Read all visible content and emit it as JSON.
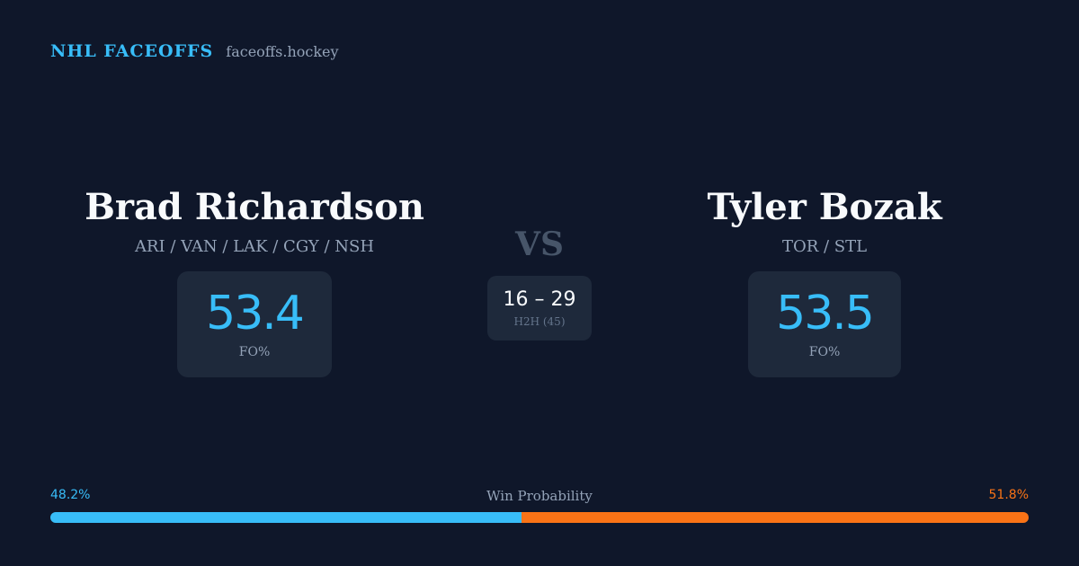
{
  "brand": {
    "title": "NHL FACEOFFS",
    "site": "faceoffs.hockey"
  },
  "player_left": {
    "name": "Brad Richardson",
    "teams": "ARI / VAN / LAK / CGY / NSH",
    "stat_value": "53.4",
    "stat_label": "FO%"
  },
  "player_right": {
    "name": "Tyler Bozak",
    "teams": "TOR / STL",
    "stat_value": "53.5",
    "stat_label": "FO%"
  },
  "versus": {
    "label": "VS",
    "score": "16 – 29",
    "h2h_label": "H2H (45)"
  },
  "win_probability": {
    "label": "Win Probability",
    "left_text": "48.2%",
    "right_text": "51.8%",
    "left_value": 48.2,
    "right_value": 51.8,
    "left_color": "#38bdf8",
    "right_color": "#f97316"
  }
}
